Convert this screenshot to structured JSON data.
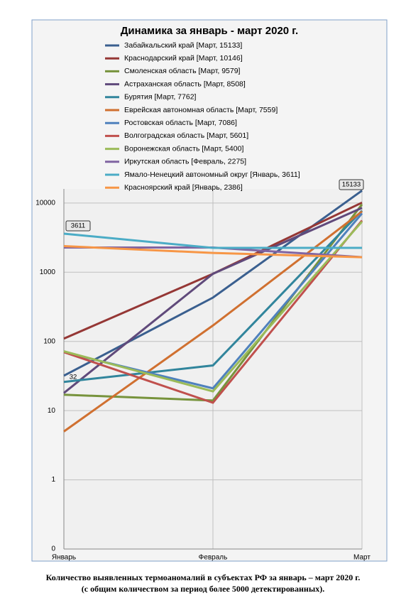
{
  "chart_data": {
    "type": "line",
    "title": "Динамика за январь - март 2020 г.",
    "categories": [
      "Январь",
      "Февраль",
      "Март"
    ],
    "log_scale": true,
    "grid": true,
    "ylim": [
      0.1,
      16000
    ],
    "yticks": [
      {
        "value": 0.1,
        "label": "0"
      },
      1,
      10,
      100,
      1000,
      10000
    ],
    "series": [
      {
        "name": "Забайкальский край [Март, 15133]",
        "color": "#3a5f8f",
        "values": [
          32,
          430,
          15133
        ]
      },
      {
        "name": "Краснодарский край [Март, 10146]",
        "color": "#953735",
        "values": [
          110,
          950,
          10146
        ]
      },
      {
        "name": "Смоленская область [Март, 9579]",
        "color": "#77933c",
        "values": [
          17,
          14,
          9579
        ]
      },
      {
        "name": "Астраханская область [Март, 8508]",
        "color": "#604a7b",
        "values": [
          18,
          950,
          8508
        ]
      },
      {
        "name": "Бурятия [Март, 7762]",
        "color": "#31859c",
        "values": [
          26,
          45,
          7762
        ]
      },
      {
        "name": "Еврейская автономная область [Март, 7559]",
        "color": "#d07030",
        "values": [
          5,
          170,
          7559
        ]
      },
      {
        "name": "Ростовская область [Март, 7086]",
        "color": "#4f81bd",
        "values": [
          70,
          21,
          7086
        ]
      },
      {
        "name": "Волгоградская область [Март, 5601]",
        "color": "#c0504d",
        "values": [
          70,
          13,
          5601
        ]
      },
      {
        "name": "Воронежская область [Март, 5400]",
        "color": "#9bbb59",
        "values": [
          72,
          19,
          5400
        ]
      },
      {
        "name": "Иркутская область [Февраль, 2275]",
        "color": "#8064a2",
        "values": [
          2275,
          2275,
          1650
        ]
      },
      {
        "name": "Ямало-Ненецкий автономный округ [Январь, 3611]",
        "color": "#4bacc6",
        "values": [
          3611,
          2250,
          2250
        ]
      },
      {
        "name": "Красноярский край [Январь, 2386]",
        "color": "#f79646",
        "values": [
          2386,
          1900,
          1650
        ]
      }
    ]
  },
  "caption": [
    "Количество выявленных термоаномалий в субъектах РФ за январь – март 2020 г.",
    "(с общим количеством за период более 5000 детектированных)."
  ]
}
